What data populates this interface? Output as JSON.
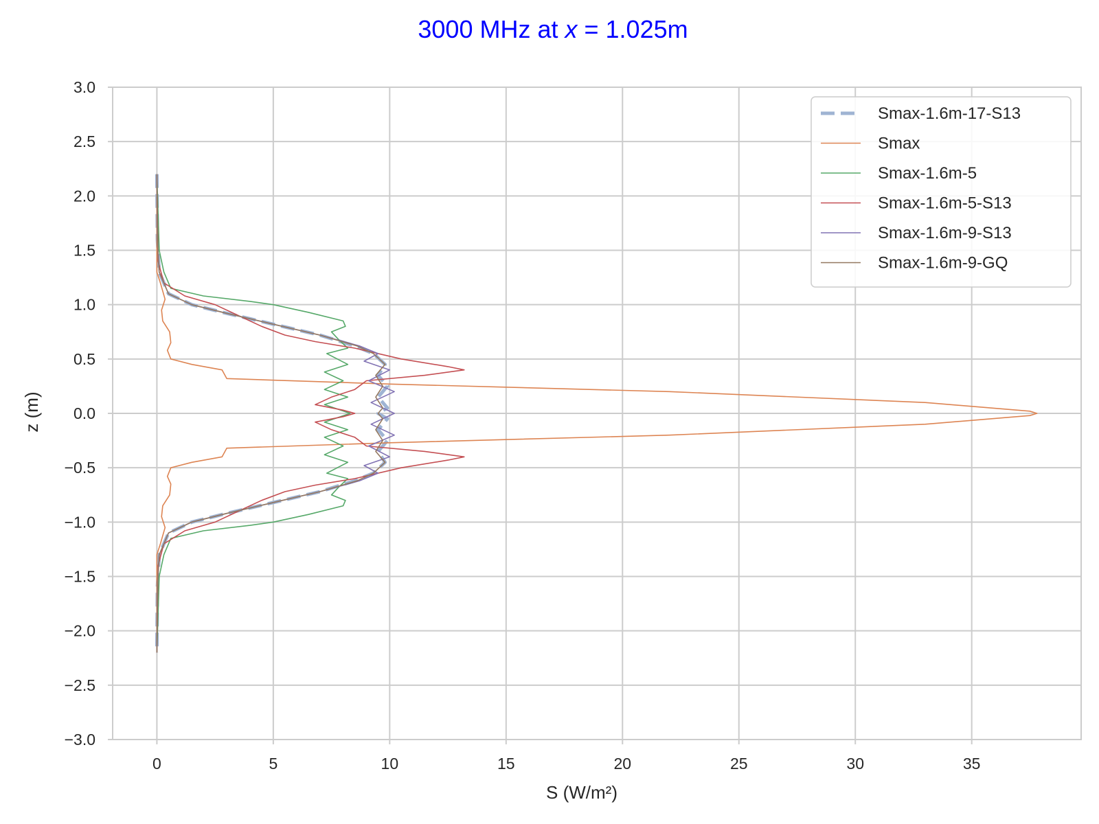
{
  "chart_data": {
    "type": "line",
    "title_pre": "3000 MHz at ",
    "title_var": "x",
    "title_post": " = 1.025m",
    "title_color": "#0000ff",
    "xlabel": "S (W/m²)",
    "ylabel": "z (m)",
    "xlim": [
      -1.9,
      39.7
    ],
    "ylim": [
      -3.0,
      3.0
    ],
    "xticks": [
      0,
      5,
      10,
      15,
      20,
      25,
      30,
      35
    ],
    "yticks": [
      -3.0,
      -2.5,
      -2.0,
      -1.5,
      -1.0,
      -0.5,
      0.0,
      0.5,
      1.0,
      1.5,
      2.0,
      2.5,
      3.0
    ],
    "ytick_labels": [
      "−3.0",
      "−2.5",
      "−2.0",
      "−1.5",
      "−1.0",
      "−0.5",
      "0.0",
      "0.5",
      "1.0",
      "1.5",
      "2.0",
      "2.5",
      "3.0"
    ],
    "grid": true,
    "legend_position": "top-right",
    "series": [
      {
        "name": "Smax-1.6m-17-S13",
        "color": "#9fb4d3",
        "dash": true,
        "width": "thick",
        "points": [
          [
            0,
            2.2
          ],
          [
            0.02,
            1.6
          ],
          [
            0.1,
            1.3
          ],
          [
            0.5,
            1.1
          ],
          [
            1.5,
            1.0
          ],
          [
            3.0,
            0.92
          ],
          [
            5.0,
            0.82
          ],
          [
            7.0,
            0.72
          ],
          [
            8.5,
            0.62
          ],
          [
            9.3,
            0.55
          ],
          [
            9.8,
            0.45
          ],
          [
            9.5,
            0.35
          ],
          [
            9.9,
            0.25
          ],
          [
            9.5,
            0.15
          ],
          [
            9.9,
            0.05
          ],
          [
            9.5,
            0.0
          ],
          [
            9.9,
            -0.05
          ],
          [
            9.5,
            -0.15
          ],
          [
            9.9,
            -0.25
          ],
          [
            9.5,
            -0.35
          ],
          [
            9.8,
            -0.45
          ],
          [
            9.3,
            -0.55
          ],
          [
            8.5,
            -0.62
          ],
          [
            7.0,
            -0.72
          ],
          [
            5.0,
            -0.82
          ],
          [
            3.0,
            -0.92
          ],
          [
            1.5,
            -1.0
          ],
          [
            0.5,
            -1.1
          ],
          [
            0.1,
            -1.3
          ],
          [
            0.02,
            -1.6
          ],
          [
            0,
            -2.2
          ]
        ]
      },
      {
        "name": "Smax",
        "color": "#dd8452",
        "dash": false,
        "width": "thin",
        "points": [
          [
            0,
            2.2
          ],
          [
            0,
            1.3
          ],
          [
            0.15,
            1.2
          ],
          [
            0.35,
            1.05
          ],
          [
            0.2,
            0.95
          ],
          [
            0.25,
            0.85
          ],
          [
            0.55,
            0.75
          ],
          [
            0.6,
            0.65
          ],
          [
            0.45,
            0.58
          ],
          [
            0.6,
            0.5
          ],
          [
            1.5,
            0.45
          ],
          [
            2.8,
            0.4
          ],
          [
            3.0,
            0.32
          ],
          [
            10.0,
            0.27
          ],
          [
            22.0,
            0.2
          ],
          [
            33.0,
            0.1
          ],
          [
            37.5,
            0.02
          ],
          [
            37.8,
            0.0
          ],
          [
            37.5,
            -0.02
          ],
          [
            33.0,
            -0.1
          ],
          [
            22.0,
            -0.2
          ],
          [
            10.0,
            -0.27
          ],
          [
            3.0,
            -0.32
          ],
          [
            2.8,
            -0.4
          ],
          [
            1.5,
            -0.45
          ],
          [
            0.6,
            -0.5
          ],
          [
            0.45,
            -0.58
          ],
          [
            0.6,
            -0.65
          ],
          [
            0.55,
            -0.75
          ],
          [
            0.25,
            -0.85
          ],
          [
            0.2,
            -0.95
          ],
          [
            0.35,
            -1.05
          ],
          [
            0.15,
            -1.2
          ],
          [
            0,
            -1.3
          ],
          [
            0,
            -2.2
          ]
        ]
      },
      {
        "name": "Smax-1.6m-5",
        "color": "#55a868",
        "dash": false,
        "width": "thin",
        "points": [
          [
            0,
            2.2
          ],
          [
            0.1,
            1.5
          ],
          [
            0.3,
            1.3
          ],
          [
            0.6,
            1.15
          ],
          [
            2.0,
            1.08
          ],
          [
            4.0,
            1.03
          ],
          [
            5.0,
            1.0
          ],
          [
            6.5,
            0.93
          ],
          [
            8.0,
            0.85
          ],
          [
            8.1,
            0.8
          ],
          [
            7.5,
            0.75
          ],
          [
            7.8,
            0.68
          ],
          [
            8.2,
            0.6
          ],
          [
            7.3,
            0.55
          ],
          [
            8.2,
            0.45
          ],
          [
            7.2,
            0.38
          ],
          [
            8.0,
            0.3
          ],
          [
            7.2,
            0.22
          ],
          [
            8.2,
            0.15
          ],
          [
            7.2,
            0.08
          ],
          [
            8.3,
            0.0
          ],
          [
            7.2,
            -0.08
          ],
          [
            8.2,
            -0.15
          ],
          [
            7.2,
            -0.22
          ],
          [
            8.0,
            -0.3
          ],
          [
            7.2,
            -0.38
          ],
          [
            8.2,
            -0.45
          ],
          [
            7.3,
            -0.55
          ],
          [
            8.2,
            -0.6
          ],
          [
            7.8,
            -0.68
          ],
          [
            7.5,
            -0.75
          ],
          [
            8.1,
            -0.8
          ],
          [
            8.0,
            -0.85
          ],
          [
            6.5,
            -0.93
          ],
          [
            5.0,
            -1.0
          ],
          [
            4.0,
            -1.03
          ],
          [
            2.0,
            -1.08
          ],
          [
            0.6,
            -1.15
          ],
          [
            0.3,
            -1.3
          ],
          [
            0.1,
            -1.5
          ],
          [
            0,
            -2.2
          ]
        ]
      },
      {
        "name": "Smax-1.6m-5-S13",
        "color": "#c44e52",
        "dash": false,
        "width": "thin",
        "points": [
          [
            0,
            2.2
          ],
          [
            0.05,
            1.4
          ],
          [
            0.3,
            1.2
          ],
          [
            1.2,
            1.08
          ],
          [
            2.5,
            1.0
          ],
          [
            3.5,
            0.9
          ],
          [
            4.5,
            0.8
          ],
          [
            5.5,
            0.72
          ],
          [
            6.8,
            0.66
          ],
          [
            8.5,
            0.6
          ],
          [
            10.5,
            0.5
          ],
          [
            12.5,
            0.43
          ],
          [
            13.2,
            0.4
          ],
          [
            11.5,
            0.35
          ],
          [
            9.0,
            0.3
          ],
          [
            8.5,
            0.22
          ],
          [
            7.5,
            0.15
          ],
          [
            6.8,
            0.08
          ],
          [
            8.0,
            0.03
          ],
          [
            8.5,
            0.0
          ],
          [
            8.0,
            -0.03
          ],
          [
            6.8,
            -0.08
          ],
          [
            7.5,
            -0.15
          ],
          [
            8.5,
            -0.22
          ],
          [
            9.0,
            -0.3
          ],
          [
            11.5,
            -0.35
          ],
          [
            13.2,
            -0.4
          ],
          [
            12.5,
            -0.43
          ],
          [
            10.5,
            -0.5
          ],
          [
            8.5,
            -0.6
          ],
          [
            6.8,
            -0.66
          ],
          [
            5.5,
            -0.72
          ],
          [
            4.5,
            -0.8
          ],
          [
            3.5,
            -0.9
          ],
          [
            2.5,
            -1.0
          ],
          [
            1.2,
            -1.08
          ],
          [
            0.3,
            -1.2
          ],
          [
            0.05,
            -1.4
          ],
          [
            0,
            -2.2
          ]
        ]
      },
      {
        "name": "Smax-1.6m-9-S13",
        "color": "#8172b3",
        "dash": false,
        "width": "thin",
        "points": [
          [
            0,
            2.2
          ],
          [
            0.02,
            1.6
          ],
          [
            0.1,
            1.3
          ],
          [
            0.5,
            1.1
          ],
          [
            1.5,
            1.0
          ],
          [
            3.0,
            0.92
          ],
          [
            5.0,
            0.82
          ],
          [
            7.0,
            0.72
          ],
          [
            8.7,
            0.62
          ],
          [
            9.5,
            0.55
          ],
          [
            8.9,
            0.48
          ],
          [
            10.0,
            0.4
          ],
          [
            9.1,
            0.3
          ],
          [
            10.2,
            0.2
          ],
          [
            9.2,
            0.1
          ],
          [
            10.2,
            0.0
          ],
          [
            9.2,
            -0.1
          ],
          [
            10.2,
            -0.2
          ],
          [
            9.1,
            -0.3
          ],
          [
            10.0,
            -0.4
          ],
          [
            8.9,
            -0.48
          ],
          [
            9.5,
            -0.55
          ],
          [
            8.7,
            -0.62
          ],
          [
            7.0,
            -0.72
          ],
          [
            5.0,
            -0.82
          ],
          [
            3.0,
            -0.92
          ],
          [
            1.5,
            -1.0
          ],
          [
            0.5,
            -1.1
          ],
          [
            0.1,
            -1.3
          ],
          [
            0.02,
            -1.6
          ],
          [
            0,
            -2.2
          ]
        ]
      },
      {
        "name": "Smax-1.6m-9-GQ",
        "color": "#937860",
        "dash": false,
        "width": "thin",
        "points": [
          [
            0,
            2.2
          ],
          [
            0.02,
            1.6
          ],
          [
            0.1,
            1.3
          ],
          [
            0.5,
            1.1
          ],
          [
            1.5,
            1.0
          ],
          [
            3.0,
            0.92
          ],
          [
            5.0,
            0.82
          ],
          [
            7.0,
            0.72
          ],
          [
            8.6,
            0.62
          ],
          [
            9.3,
            0.55
          ],
          [
            9.8,
            0.45
          ],
          [
            9.4,
            0.35
          ],
          [
            9.7,
            0.25
          ],
          [
            9.4,
            0.15
          ],
          [
            9.7,
            0.05
          ],
          [
            9.5,
            0.0
          ],
          [
            9.7,
            -0.05
          ],
          [
            9.4,
            -0.15
          ],
          [
            9.7,
            -0.25
          ],
          [
            9.4,
            -0.35
          ],
          [
            9.8,
            -0.45
          ],
          [
            9.3,
            -0.55
          ],
          [
            8.6,
            -0.62
          ],
          [
            7.0,
            -0.72
          ],
          [
            5.0,
            -0.82
          ],
          [
            3.0,
            -0.92
          ],
          [
            1.5,
            -1.0
          ],
          [
            0.5,
            -1.1
          ],
          [
            0.1,
            -1.3
          ],
          [
            0.02,
            -1.6
          ],
          [
            0,
            -2.2
          ]
        ]
      }
    ]
  }
}
